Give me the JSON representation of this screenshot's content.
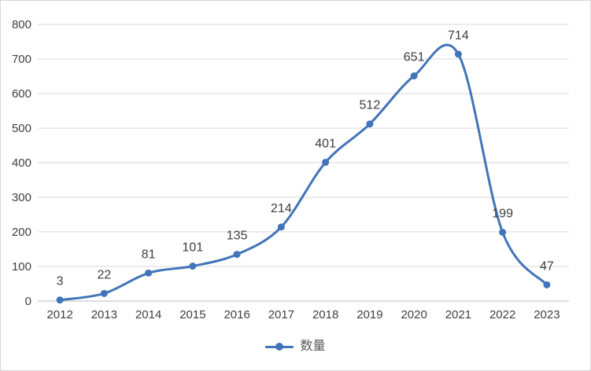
{
  "chart_data": {
    "type": "line",
    "smooth": true,
    "title": "",
    "xlabel": "",
    "ylabel": "",
    "categories": [
      "2012",
      "2013",
      "2014",
      "2015",
      "2016",
      "2017",
      "2018",
      "2019",
      "2020",
      "2021",
      "2022",
      "2023"
    ],
    "series": [
      {
        "name": "数量",
        "values": [
          3,
          22,
          81,
          101,
          135,
          214,
          401,
          512,
          651,
          714,
          199,
          47
        ]
      }
    ],
    "data_labels_shown": true,
    "ylim": [
      0,
      800
    ],
    "y_ticks": [
      0,
      100,
      200,
      300,
      400,
      500,
      600,
      700,
      800
    ],
    "grid": true,
    "legend_position": "bottom",
    "marker": "circle",
    "colors": {
      "line": "#4274b9",
      "marker": "#4274b9",
      "gridline": "#d9d9d9",
      "axis_line": "#bfbfbf",
      "tick_text": "#404040",
      "data_label_text": "#3d3d3d",
      "legend_text": "#595959",
      "frame_border": "#d6d6d6",
      "background": "#ffffff"
    }
  }
}
